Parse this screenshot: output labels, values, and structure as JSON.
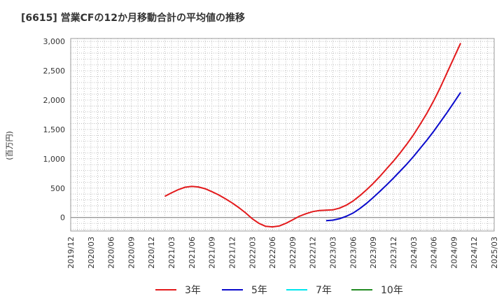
{
  "chart_data": {
    "type": "line",
    "title": "[6615]  営業CFの12か月移動合計の平均値の推移",
    "ylabel": "(百万円)",
    "xlabel": "",
    "ylim": [
      -230,
      3050
    ],
    "grid": true,
    "legend_position": "bottom",
    "x_ticks": [
      "2019/12",
      "2020/03",
      "2020/06",
      "2020/09",
      "2020/12",
      "2021/03",
      "2021/06",
      "2021/09",
      "2021/12",
      "2022/03",
      "2022/06",
      "2022/09",
      "2022/12",
      "2023/03",
      "2023/06",
      "2023/09",
      "2023/12",
      "2024/03",
      "2024/06",
      "2024/09",
      "2024/12",
      "2025/03"
    ],
    "y_ticks": [
      "3,000",
      "2,500",
      "2,000",
      "1,500",
      "1,000",
      "500",
      "0"
    ],
    "y_tick_values": [
      3000,
      2500,
      2000,
      1500,
      1000,
      500,
      0
    ],
    "series": [
      {
        "name": "3年",
        "color": "#e31a1c",
        "points": [
          [
            "2021/02",
            360
          ],
          [
            "2021/03",
            420
          ],
          [
            "2021/04",
            475
          ],
          [
            "2021/05",
            515
          ],
          [
            "2021/06",
            530
          ],
          [
            "2021/07",
            520
          ],
          [
            "2021/08",
            490
          ],
          [
            "2021/09",
            440
          ],
          [
            "2021/10",
            385
          ],
          [
            "2021/11",
            320
          ],
          [
            "2021/12",
            250
          ],
          [
            "2022/01",
            170
          ],
          [
            "2022/02",
            80
          ],
          [
            "2022/03",
            -20
          ],
          [
            "2022/04",
            -100
          ],
          [
            "2022/05",
            -150
          ],
          [
            "2022/06",
            -160
          ],
          [
            "2022/07",
            -145
          ],
          [
            "2022/08",
            -100
          ],
          [
            "2022/09",
            -40
          ],
          [
            "2022/10",
            20
          ],
          [
            "2022/11",
            65
          ],
          [
            "2022/12",
            100
          ],
          [
            "2023/01",
            120
          ],
          [
            "2023/02",
            125
          ],
          [
            "2023/03",
            130
          ],
          [
            "2023/04",
            160
          ],
          [
            "2023/05",
            210
          ],
          [
            "2023/06",
            280
          ],
          [
            "2023/07",
            370
          ],
          [
            "2023/08",
            470
          ],
          [
            "2023/09",
            580
          ],
          [
            "2023/10",
            700
          ],
          [
            "2023/11",
            830
          ],
          [
            "2023/12",
            960
          ],
          [
            "2024/01",
            1100
          ],
          [
            "2024/02",
            1250
          ],
          [
            "2024/03",
            1410
          ],
          [
            "2024/04",
            1590
          ],
          [
            "2024/05",
            1780
          ],
          [
            "2024/06",
            1990
          ],
          [
            "2024/07",
            2220
          ],
          [
            "2024/08",
            2470
          ],
          [
            "2024/09",
            2720
          ],
          [
            "2024/10",
            2970
          ]
        ]
      },
      {
        "name": "5年",
        "color": "#0a0acc",
        "points": [
          [
            "2023/02",
            -55
          ],
          [
            "2023/03",
            -45
          ],
          [
            "2023/04",
            -20
          ],
          [
            "2023/05",
            20
          ],
          [
            "2023/06",
            75
          ],
          [
            "2023/07",
            150
          ],
          [
            "2023/08",
            240
          ],
          [
            "2023/09",
            340
          ],
          [
            "2023/10",
            445
          ],
          [
            "2023/11",
            555
          ],
          [
            "2023/12",
            670
          ],
          [
            "2024/01",
            790
          ],
          [
            "2024/02",
            910
          ],
          [
            "2024/03",
            1040
          ],
          [
            "2024/04",
            1180
          ],
          [
            "2024/05",
            1320
          ],
          [
            "2024/06",
            1470
          ],
          [
            "2024/07",
            1630
          ],
          [
            "2024/08",
            1790
          ],
          [
            "2024/09",
            1960
          ],
          [
            "2024/10",
            2130
          ]
        ]
      },
      {
        "name": "7年",
        "color": "#00e5ee",
        "points": []
      },
      {
        "name": "10年",
        "color": "#228b22",
        "points": []
      }
    ]
  }
}
